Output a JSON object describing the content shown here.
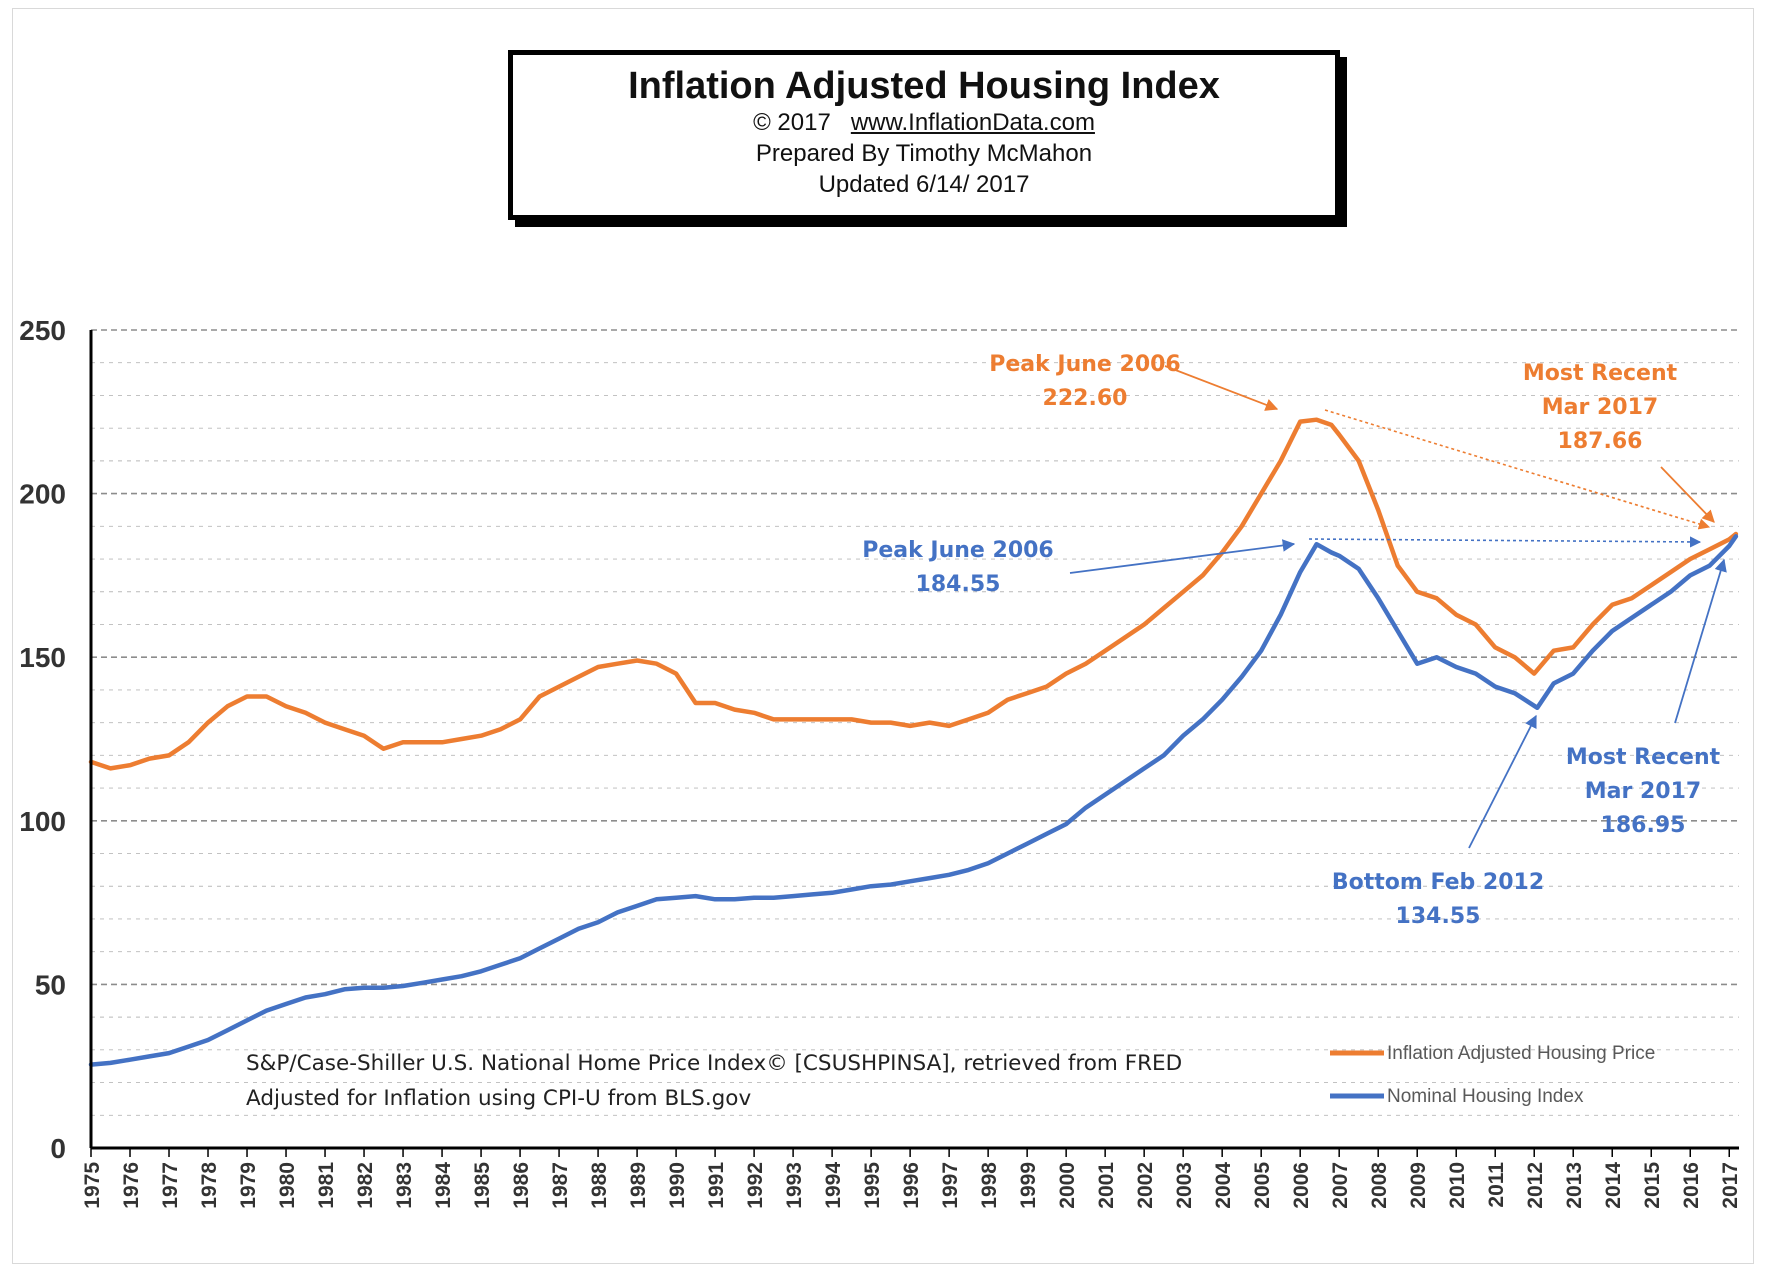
{
  "title_box": {
    "title": "Inflation Adjusted Housing Index",
    "copyright": "© 2017",
    "website": "www.InflationData.com",
    "prepared_by": "Prepared By Timothy McMahon",
    "updated": "Updated 6/14/ 2017"
  },
  "colors": {
    "inflation_adjusted": "#ED7D31",
    "nominal": "#4472C4",
    "grid": "#808080",
    "axis": "#000000"
  },
  "chart_data": {
    "type": "line",
    "ylim": [
      0,
      250
    ],
    "xlim": [
      1975,
      2017.25
    ],
    "y_ticks": [
      "0",
      "50",
      "100",
      "150",
      "200",
      "250"
    ],
    "x_ticks": [
      "1975",
      "1976",
      "1977",
      "1978",
      "1979",
      "1980",
      "1981",
      "1982",
      "1983",
      "1984",
      "1985",
      "1986",
      "1987",
      "1988",
      "1989",
      "1990",
      "1991",
      "1992",
      "1993",
      "1994",
      "1995",
      "1996",
      "1997",
      "1998",
      "1999",
      "2000",
      "2001",
      "2002",
      "2003",
      "2004",
      "2005",
      "2006",
      "2007",
      "2008",
      "2009",
      "2010",
      "2011",
      "2012",
      "2013",
      "2014",
      "2015",
      "2016",
      "2017"
    ],
    "grid": true,
    "legend_position": "bottom-right",
    "series": [
      {
        "name": "Inflation Adjusted Housing Price",
        "color": "#ED7D31",
        "x": [
          1975.0,
          1975.5,
          1976.0,
          1976.5,
          1977.0,
          1977.5,
          1978.0,
          1978.5,
          1979.0,
          1979.5,
          1980.0,
          1980.5,
          1981.0,
          1981.5,
          1982.0,
          1982.5,
          1983.0,
          1983.5,
          1984.0,
          1984.5,
          1985.0,
          1985.5,
          1986.0,
          1986.5,
          1987.0,
          1987.5,
          1988.0,
          1988.5,
          1989.0,
          1989.5,
          1990.0,
          1990.5,
          1991.0,
          1991.5,
          1992.0,
          1992.5,
          1993.0,
          1993.5,
          1994.0,
          1994.5,
          1995.0,
          1995.5,
          1996.0,
          1996.5,
          1997.0,
          1997.5,
          1998.0,
          1998.5,
          1999.0,
          1999.5,
          2000.0,
          2000.5,
          2001.0,
          2001.5,
          2002.0,
          2002.5,
          2003.0,
          2003.5,
          2004.0,
          2004.5,
          2005.0,
          2005.5,
          2006.0,
          2006.42,
          2006.8,
          2007.0,
          2007.5,
          2008.0,
          2008.5,
          2009.0,
          2009.5,
          2010.0,
          2010.5,
          2011.0,
          2011.5,
          2012.0,
          2012.5,
          2013.0,
          2013.5,
          2014.0,
          2014.5,
          2015.0,
          2015.5,
          2016.0,
          2016.5,
          2017.0,
          2017.17
        ],
        "values": [
          118,
          116,
          117,
          119,
          120,
          124,
          130,
          135,
          138,
          138,
          135,
          133,
          130,
          128,
          126,
          122,
          124,
          124,
          124,
          125,
          126,
          128,
          131,
          138,
          141,
          144,
          147,
          148,
          149,
          148,
          145,
          136,
          136,
          134,
          133,
          131,
          131,
          131,
          131,
          131,
          130,
          130,
          129,
          130,
          129,
          131,
          133,
          137,
          139,
          141,
          145,
          148,
          152,
          156,
          160,
          165,
          170,
          175,
          182,
          190,
          200,
          210,
          222,
          222.6,
          221,
          218,
          210,
          195,
          178,
          170,
          168,
          163,
          160,
          153,
          150,
          145,
          152,
          153,
          160,
          166,
          168,
          172,
          176,
          180,
          183,
          186,
          187.66
        ]
      },
      {
        "name": "Nominal Housing Index",
        "color": "#4472C4",
        "x": [
          1975.0,
          1975.5,
          1976.0,
          1976.5,
          1977.0,
          1977.5,
          1978.0,
          1978.5,
          1979.0,
          1979.5,
          1980.0,
          1980.5,
          1981.0,
          1981.5,
          1982.0,
          1982.5,
          1983.0,
          1983.5,
          1984.0,
          1984.5,
          1985.0,
          1985.5,
          1986.0,
          1986.5,
          1987.0,
          1987.5,
          1988.0,
          1988.5,
          1989.0,
          1989.5,
          1990.0,
          1990.5,
          1991.0,
          1991.5,
          1992.0,
          1992.5,
          1993.0,
          1993.5,
          1994.0,
          1994.5,
          1995.0,
          1995.5,
          1996.0,
          1996.5,
          1997.0,
          1997.5,
          1998.0,
          1998.5,
          1999.0,
          1999.5,
          2000.0,
          2000.5,
          2001.0,
          2001.5,
          2002.0,
          2002.5,
          2003.0,
          2003.5,
          2004.0,
          2004.5,
          2005.0,
          2005.5,
          2006.0,
          2006.42,
          2006.8,
          2007.0,
          2007.5,
          2008.0,
          2008.5,
          2009.0,
          2009.5,
          2010.0,
          2010.5,
          2011.0,
          2011.5,
          2012.08,
          2012.5,
          2013.0,
          2013.5,
          2014.0,
          2014.5,
          2015.0,
          2015.5,
          2016.0,
          2016.5,
          2017.0,
          2017.17
        ],
        "values": [
          25.5,
          26,
          27,
          28,
          29,
          31,
          33,
          36,
          39,
          42,
          44,
          46,
          47,
          48.5,
          49,
          49,
          49.5,
          50.5,
          51.5,
          52.5,
          54,
          56,
          58,
          61,
          64,
          67,
          69,
          72,
          74,
          76,
          76.5,
          77,
          76,
          76,
          76.5,
          76.5,
          77,
          77.5,
          78,
          79,
          80,
          80.5,
          81.5,
          82.5,
          83.5,
          85,
          87,
          90,
          93,
          96,
          99,
          104,
          108,
          112,
          116,
          120,
          126,
          131,
          137,
          144,
          152,
          163,
          176,
          184.55,
          182,
          181,
          177,
          168,
          158,
          148,
          150,
          147,
          145,
          141,
          139,
          134.55,
          142,
          145,
          152,
          158,
          162,
          166,
          170,
          175,
          178,
          184,
          186.95
        ]
      }
    ],
    "annotations": [
      {
        "series": "Inflation Adjusted Housing Price",
        "lines": [
          "Peak June 2006",
          "222.60"
        ],
        "x": 2006.42,
        "y": 222.6
      },
      {
        "series": "Inflation Adjusted Housing Price",
        "lines": [
          "Most Recent",
          "Mar 2017",
          "187.66"
        ],
        "x": 2017.17,
        "y": 187.66
      },
      {
        "series": "Nominal Housing Index",
        "lines": [
          "Peak June 2006",
          "184.55"
        ],
        "x": 2006.42,
        "y": 184.55
      },
      {
        "series": "Nominal Housing Index",
        "lines": [
          "Most Recent",
          "Mar 2017",
          "186.95"
        ],
        "x": 2017.17,
        "y": 186.95
      },
      {
        "series": "Nominal Housing Index",
        "lines": [
          "Bottom Feb 2012",
          "134.55"
        ],
        "x": 2012.08,
        "y": 134.55
      }
    ],
    "source_notes": [
      "S&P/Case-Shiller U.S. National Home Price Index© [CSUSHPINSA], retrieved from FRED",
      "Adjusted for Inflation using CPI-U from BLS.gov"
    ]
  }
}
